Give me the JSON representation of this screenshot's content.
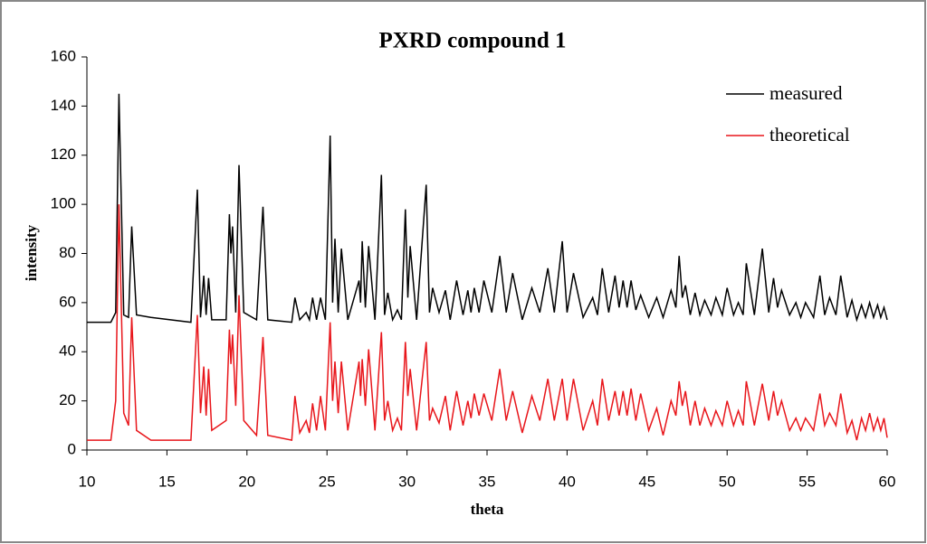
{
  "chart_data": {
    "type": "line",
    "title": "PXRD compound 1",
    "xlabel": "theta",
    "ylabel": "intensity",
    "x": [
      10,
      11.5,
      11.8,
      12.0,
      12.3,
      12.6,
      12.8,
      13.1,
      14,
      16.5,
      16.9,
      17.1,
      17.3,
      17.45,
      17.6,
      17.8,
      18.7,
      18.9,
      19.0,
      19.1,
      19.3,
      19.5,
      19.8,
      20.6,
      21.0,
      21.3,
      22.8,
      23.0,
      23.3,
      23.7,
      23.9,
      24.1,
      24.35,
      24.6,
      24.9,
      25.2,
      25.35,
      25.5,
      25.7,
      25.9,
      26.3,
      27.0,
      27.1,
      27.2,
      27.4,
      27.6,
      28.0,
      28.4,
      28.6,
      28.8,
      29.1,
      29.4,
      29.65,
      29.9,
      30.05,
      30.2,
      30.6,
      31.2,
      31.4,
      31.6,
      32.0,
      32.4,
      32.7,
      33.1,
      33.5,
      33.8,
      34.0,
      34.2,
      34.5,
      34.8,
      35.3,
      35.8,
      36.2,
      36.6,
      37.2,
      37.8,
      38.3,
      38.8,
      39.2,
      39.7,
      40.0,
      40.4,
      41.0,
      41.6,
      41.9,
      42.2,
      42.6,
      43.0,
      43.25,
      43.5,
      43.75,
      44.0,
      44.3,
      44.6,
      45.1,
      45.6,
      46.0,
      46.5,
      46.8,
      47.0,
      47.2,
      47.4,
      47.7,
      48.0,
      48.3,
      48.6,
      49.0,
      49.3,
      49.7,
      50.0,
      50.4,
      50.7,
      51.0,
      51.2,
      51.7,
      52.2,
      52.6,
      52.9,
      53.15,
      53.4,
      53.9,
      54.3,
      54.6,
      54.9,
      55.4,
      55.8,
      56.1,
      56.4,
      56.8,
      57.1,
      57.5,
      57.8,
      58.1,
      58.4,
      58.65,
      58.9,
      59.15,
      59.4,
      59.6,
      59.8,
      60
    ],
    "series": [
      {
        "name": "measured",
        "color": "#000000",
        "values": [
          52,
          52,
          56,
          145,
          55,
          54,
          91,
          55,
          54,
          52,
          106,
          54,
          71,
          55,
          70,
          53,
          53,
          96,
          80,
          91,
          56,
          116,
          56,
          53,
          99,
          53,
          52,
          62,
          53,
          56,
          53,
          62,
          53,
          62,
          53,
          128,
          60,
          86,
          56,
          82,
          53,
          69,
          60,
          85,
          58,
          83,
          53,
          112,
          55,
          64,
          53,
          57,
          53,
          98,
          62,
          83,
          53,
          108,
          56,
          66,
          56,
          65,
          53,
          69,
          55,
          65,
          56,
          66,
          56,
          69,
          56,
          79,
          56,
          72,
          53,
          66,
          56,
          74,
          56,
          85,
          56,
          72,
          54,
          62,
          55,
          74,
          56,
          71,
          58,
          69,
          58,
          69,
          57,
          63,
          54,
          62,
          54,
          65,
          58,
          79,
          62,
          67,
          55,
          64,
          55,
          61,
          55,
          62,
          55,
          66,
          55,
          60,
          55,
          76,
          55,
          82,
          56,
          70,
          58,
          65,
          55,
          60,
          54,
          60,
          54,
          71,
          55,
          62,
          55,
          71,
          54,
          61,
          53,
          59,
          54,
          60,
          54,
          59,
          54,
          58,
          53
        ]
      },
      {
        "name": "theoretical",
        "color": "#e8161b",
        "values": [
          4,
          4,
          20,
          100,
          15,
          10,
          54,
          8,
          4,
          4,
          55,
          15,
          34,
          14,
          33,
          8,
          12,
          49,
          35,
          47,
          18,
          63,
          12,
          6,
          46,
          6,
          4,
          22,
          7,
          12,
          7,
          19,
          8,
          22,
          8,
          52,
          20,
          36,
          15,
          36,
          8,
          36,
          22,
          37,
          18,
          41,
          8,
          48,
          12,
          20,
          8,
          13,
          8,
          44,
          22,
          33,
          8,
          44,
          12,
          17,
          11,
          22,
          8,
          24,
          10,
          20,
          13,
          23,
          14,
          23,
          12,
          33,
          12,
          24,
          7,
          22,
          12,
          29,
          12,
          29,
          12,
          29,
          8,
          20,
          10,
          29,
          12,
          24,
          14,
          24,
          14,
          25,
          12,
          23,
          8,
          17,
          6,
          20,
          14,
          28,
          18,
          24,
          10,
          20,
          10,
          17,
          10,
          16,
          10,
          20,
          10,
          16,
          10,
          28,
          10,
          27,
          12,
          24,
          14,
          20,
          8,
          13,
          8,
          13,
          8,
          23,
          10,
          15,
          10,
          23,
          7,
          12,
          4,
          13,
          8,
          15,
          8,
          13,
          8,
          13,
          5
        ]
      }
    ],
    "xlim": [
      10,
      60
    ],
    "xticks": [
      10,
      15,
      20,
      25,
      30,
      35,
      40,
      45,
      50,
      55,
      60
    ],
    "ylim": [
      0,
      160
    ],
    "yticks": [
      0,
      20,
      40,
      60,
      80,
      100,
      120,
      140,
      160
    ],
    "grid": false,
    "legend": "top-right"
  }
}
